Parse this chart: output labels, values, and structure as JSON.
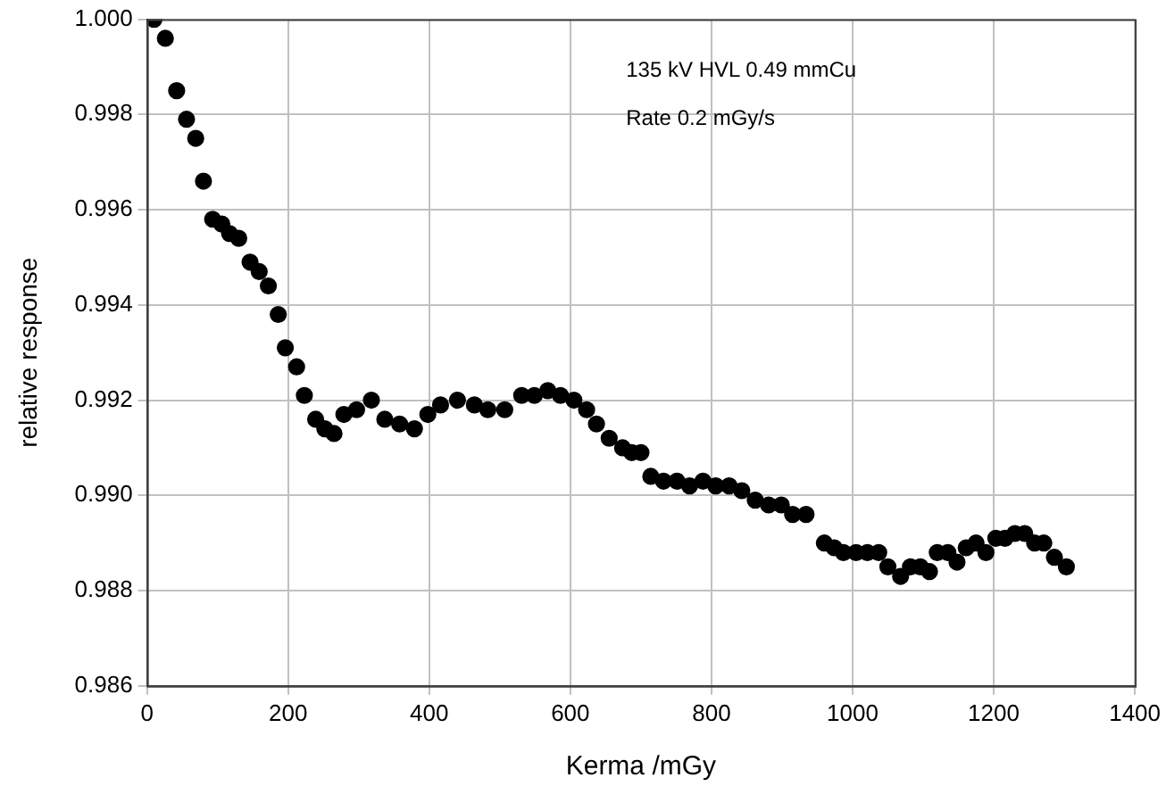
{
  "chart_data": {
    "type": "scatter",
    "xlabel": "Kerma /mGy",
    "ylabel": "relative response",
    "annotations": [
      "135 kV HVL 0.49 mmCu",
      "Rate 0.2 mGy/s"
    ],
    "xlim": [
      0,
      1400
    ],
    "xticks": [
      0,
      200,
      400,
      600,
      800,
      1000,
      1200,
      1400
    ],
    "ylim": [
      0.986,
      1.0
    ],
    "yticks": [
      {
        "value": 0.986,
        "label": "0.986"
      },
      {
        "value": 0.988,
        "label": "0.988"
      },
      {
        "value": 0.99,
        "label": "0.990"
      },
      {
        "value": 0.992,
        "label": "0.992"
      },
      {
        "value": 0.994,
        "label": "0.994"
      },
      {
        "value": 0.996,
        "label": "0.996"
      },
      {
        "value": 0.998,
        "label": "0.998"
      },
      {
        "value": 1.0,
        "label": "1.000"
      }
    ],
    "grid": true,
    "legend": false,
    "marker": "circle",
    "series": [
      {
        "color": "#000000",
        "x": [
          10,
          26,
          42,
          56,
          69,
          80,
          93,
          106,
          117,
          130,
          146,
          159,
          172,
          186,
          196,
          212,
          223,
          239,
          252,
          265,
          279,
          297,
          318,
          337,
          358,
          379,
          398,
          416,
          440,
          464,
          483,
          507,
          531,
          549,
          568,
          586,
          605,
          623,
          637,
          655,
          674,
          687,
          700,
          714,
          732,
          751,
          769,
          788,
          806,
          825,
          843,
          862,
          881,
          899,
          915,
          934,
          960,
          974,
          987,
          1005,
          1021,
          1037,
          1050,
          1068,
          1082,
          1096,
          1109,
          1120,
          1135,
          1148,
          1161,
          1175,
          1189,
          1203,
          1216,
          1230,
          1244,
          1258,
          1271,
          1286,
          1303
        ],
        "values": [
          1.0,
          0.9996,
          0.9985,
          0.9979,
          0.9975,
          0.9966,
          0.9958,
          0.9957,
          0.9955,
          0.9954,
          0.9949,
          0.9947,
          0.9944,
          0.9938,
          0.9931,
          0.9927,
          0.9921,
          0.9916,
          0.9914,
          0.9913,
          0.9917,
          0.9918,
          0.992,
          0.9916,
          0.9915,
          0.9914,
          0.9917,
          0.9919,
          0.992,
          0.9919,
          0.9918,
          0.9918,
          0.9921,
          0.9921,
          0.9922,
          0.9921,
          0.992,
          0.9918,
          0.9915,
          0.9912,
          0.991,
          0.9909,
          0.9909,
          0.9904,
          0.9903,
          0.9903,
          0.9902,
          0.9903,
          0.9902,
          0.9902,
          0.9901,
          0.9899,
          0.9898,
          0.9898,
          0.9896,
          0.9896,
          0.989,
          0.9889,
          0.9888,
          0.9888,
          0.9888,
          0.9888,
          0.9885,
          0.9883,
          0.9885,
          0.9885,
          0.9884,
          0.9888,
          0.9888,
          0.9886,
          0.9889,
          0.989,
          0.9888,
          0.9891,
          0.9891,
          0.9892,
          0.9892,
          0.989,
          0.989,
          0.9887,
          0.9885
        ]
      }
    ]
  }
}
